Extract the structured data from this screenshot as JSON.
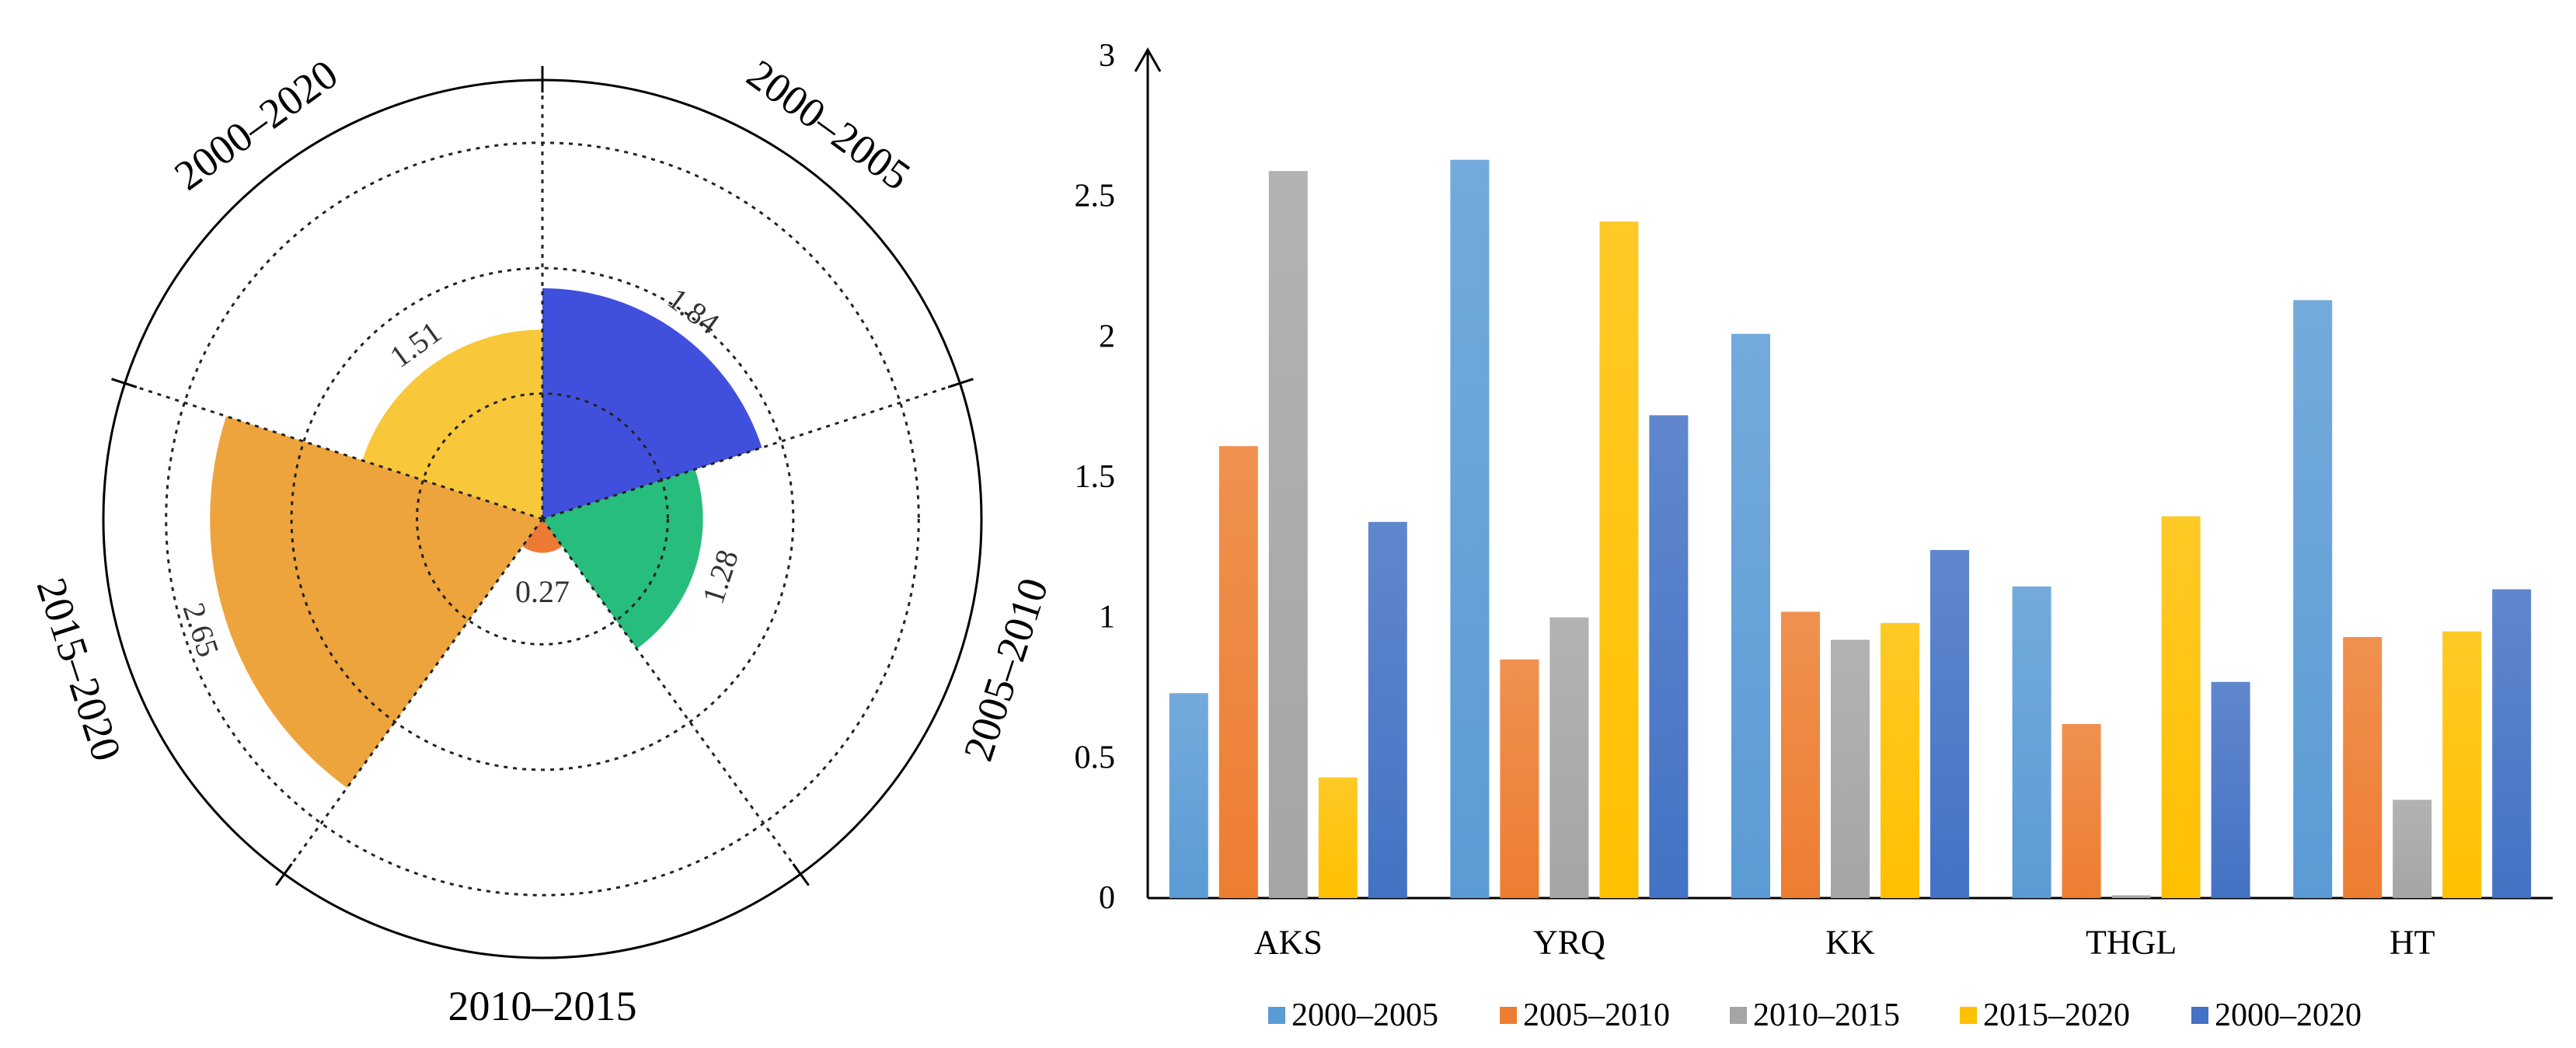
{
  "colors": {
    "blue_bright": "#4150dc",
    "green": "#27bd7c",
    "orange_small": "#ec7a35",
    "orange_large": "#eea43d",
    "yellow": "#f8c83a",
    "bar_2000_2005": "#5b9bd5",
    "bar_2005_2010": "#ed7d31",
    "bar_2010_2015": "#a5a5a5",
    "bar_2015_2020": "#ffc000",
    "bar_2000_2020": "#4472c4"
  },
  "chart_data": [
    {
      "type": "polar-bar",
      "title": "",
      "categories": [
        "2000–2005",
        "2005–2010",
        "2010–2015",
        "2015–2020",
        "2000–2020"
      ],
      "values": [
        1.84,
        1.28,
        0.27,
        2.65,
        1.51
      ],
      "value_labels": [
        "1.84",
        "1.28",
        "0.27",
        "2.65",
        "1.51"
      ],
      "colors": [
        "#4150dc",
        "#27bd7c",
        "#ec7a35",
        "#eea43d",
        "#f8c83a"
      ],
      "radial_gridlines": [
        1,
        2,
        3
      ],
      "rmax": 3.5,
      "start_direction": "top",
      "direction": "clockwise"
    },
    {
      "type": "bar",
      "title": "",
      "xlabel": "",
      "ylabel": "",
      "categories": [
        "AKS",
        "YRQ",
        "KK",
        "THGL",
        "HT"
      ],
      "ylim": [
        0,
        3
      ],
      "yticks": [
        "0",
        "0.5",
        "1",
        "1.5",
        "2",
        "2.5",
        "3"
      ],
      "legend_position": "bottom",
      "series": [
        {
          "name": "2000–2005",
          "color": "#5b9bd5",
          "values": [
            0.73,
            2.63,
            2.01,
            1.11,
            2.13
          ]
        },
        {
          "name": "2005–2010",
          "color": "#ed7d31",
          "values": [
            1.61,
            0.85,
            1.02,
            0.62,
            0.93
          ]
        },
        {
          "name": "2010–2015",
          "color": "#a5a5a5",
          "values": [
            2.59,
            1.0,
            0.92,
            0.01,
            0.35
          ]
        },
        {
          "name": "2015–2020",
          "color": "#ffc000",
          "values": [
            0.43,
            2.41,
            0.98,
            1.36,
            0.95
          ]
        },
        {
          "name": "2000–2020",
          "color": "#4472c4",
          "values": [
            1.34,
            1.72,
            1.24,
            0.77,
            1.1
          ]
        }
      ]
    }
  ]
}
